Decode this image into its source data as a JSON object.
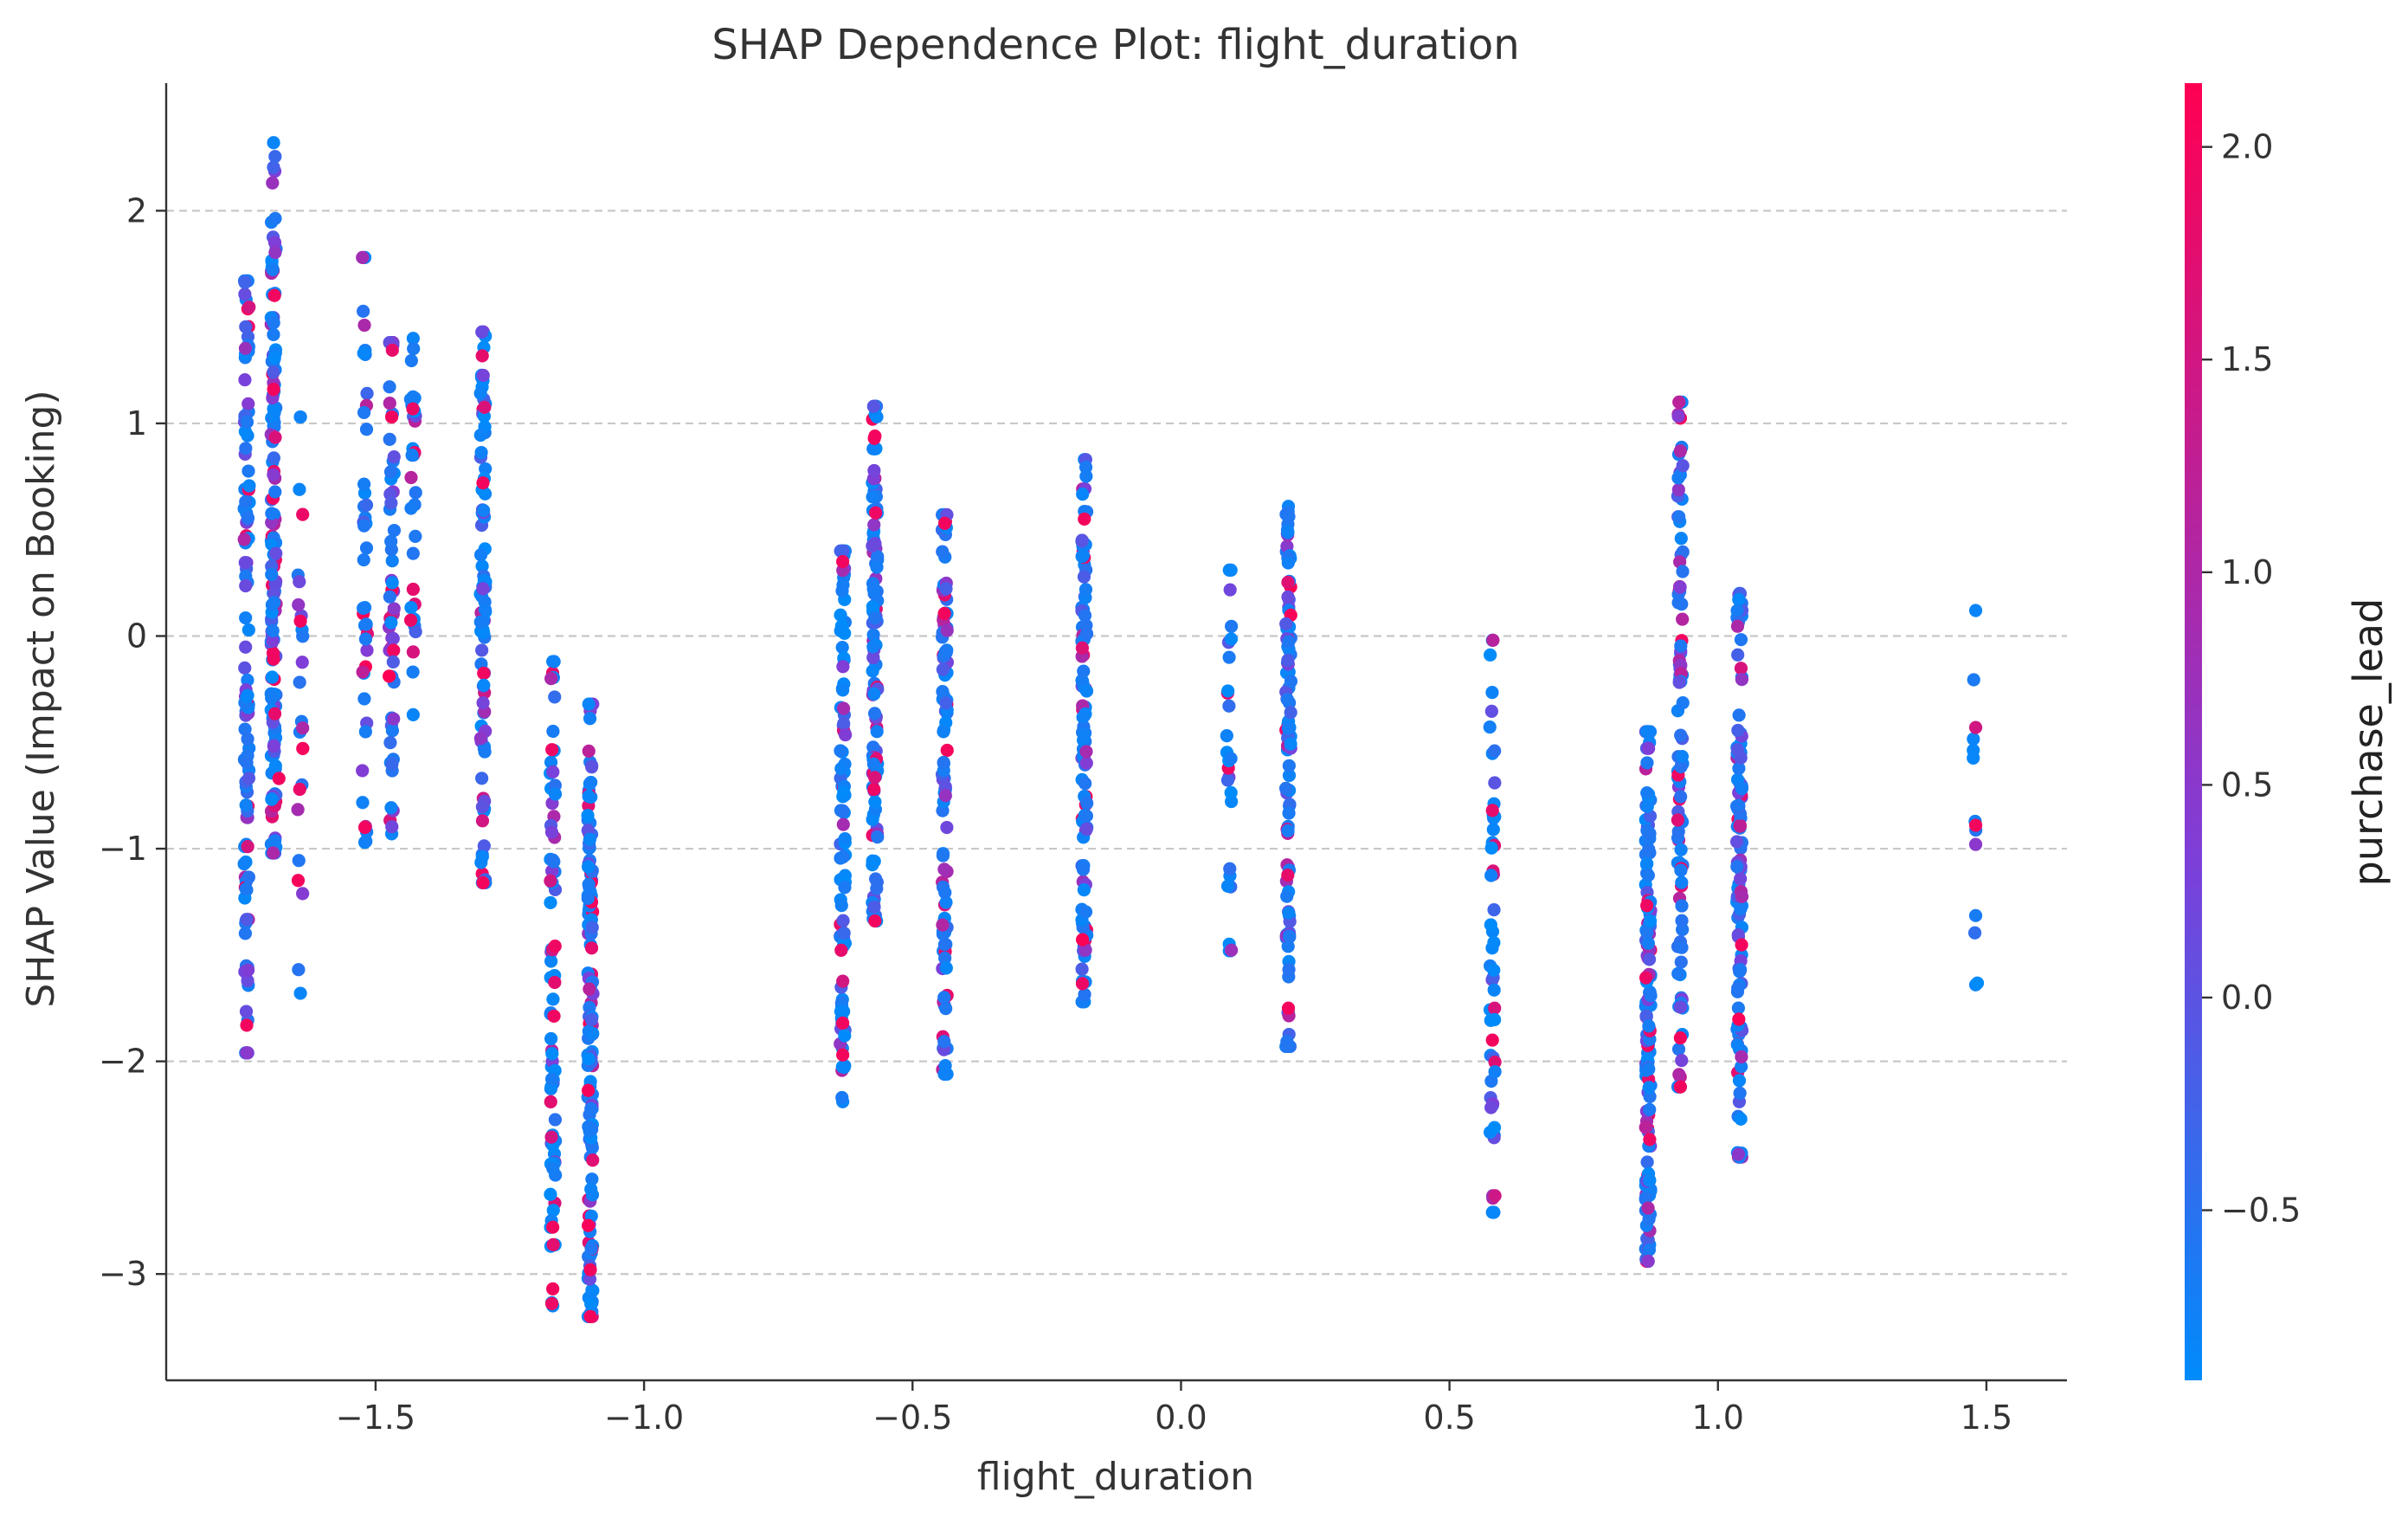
{
  "chart_data": {
    "type": "scatter",
    "title": "SHAP Dependence Plot: flight_duration",
    "xlabel": "flight_duration",
    "ylabel": "SHAP Value (Impact on Booking)",
    "xlim": [
      -1.89,
      1.65
    ],
    "ylim": [
      -3.5,
      2.6
    ],
    "xticks": [
      -1.5,
      -1.0,
      -0.5,
      0.0,
      0.5,
      1.0,
      1.5
    ],
    "xtick_labels": [
      "−1.5",
      "−1.0",
      "−0.5",
      "0.0",
      "0.5",
      "1.0",
      "1.5"
    ],
    "yticks": [
      2,
      1,
      0,
      -1,
      -2,
      -3
    ],
    "ytick_labels": [
      "2",
      "1",
      "0",
      "−1",
      "−2",
      "−3"
    ],
    "grid": "horizontal dashed",
    "colorbar": {
      "label": "purchase_lead",
      "range": [
        -0.9,
        2.15
      ],
      "ticks": [
        2.0,
        1.5,
        1.0,
        0.5,
        0.0,
        -0.5
      ],
      "tick_labels": [
        "2.0",
        "1.5",
        "1.0",
        "0.5",
        "0.0",
        "−0.5"
      ],
      "colors": [
        "#008bfb",
        "#7d3fd9",
        "#ff0052"
      ]
    },
    "groups": [
      {
        "x": -1.74,
        "ymin": -1.96,
        "ymax": 1.67,
        "ymean": -0.2,
        "n": 110,
        "cmean": 0.1,
        "extras": [
          [
            -1.74,
            -1.83,
            2.0
          ]
        ]
      },
      {
        "x": -1.69,
        "ymin": -1.02,
        "ymax": 2.32,
        "ymean": 0.5,
        "n": 150,
        "cmean": -0.1,
        "extras": [
          [
            -1.69,
            1.16,
            2.0
          ],
          [
            -1.68,
            -0.67,
            2.0
          ]
        ]
      },
      {
        "x": -1.64,
        "ymin": -1.68,
        "ymax": 1.03,
        "ymean": -0.1,
        "n": 22,
        "cmean": 0.2,
        "extras": [
          [
            -1.64,
            0.07,
            2.0
          ]
        ]
      },
      {
        "x": -1.52,
        "ymin": -0.97,
        "ymax": 1.78,
        "ymean": 0.3,
        "n": 40,
        "cmean": 0.1,
        "extras": [
          [
            -1.52,
            -0.9,
            2.0
          ]
        ]
      },
      {
        "x": -1.47,
        "ymin": -0.93,
        "ymax": 1.38,
        "ymean": 0.3,
        "n": 55,
        "cmean": 0.1,
        "extras": [
          [
            -1.47,
            1.03,
            2.0
          ]
        ]
      },
      {
        "x": -1.43,
        "ymin": -0.37,
        "ymax": 1.4,
        "ymean": 0.4,
        "n": 30,
        "cmean": 0.0,
        "extras": [
          [
            -1.43,
            0.22,
            1.8
          ]
        ]
      },
      {
        "x": -1.3,
        "ymin": -1.16,
        "ymax": 1.43,
        "ymean": 0.2,
        "n": 90,
        "cmean": -0.3,
        "extras": [
          [
            -1.3,
            -1.16,
            2.0
          ],
          [
            -1.3,
            0.72,
            2.0
          ]
        ]
      },
      {
        "x": -1.17,
        "ymin": -3.15,
        "ymax": -0.12,
        "ymean": -1.6,
        "n": 75,
        "cmean": -0.3,
        "extras": [
          [
            -1.17,
            -3.07,
            2.0
          ],
          [
            -1.17,
            -2.78,
            2.0
          ]
        ]
      },
      {
        "x": -1.1,
        "ymin": -3.2,
        "ymax": -0.32,
        "ymean": -1.8,
        "n": 150,
        "cmean": 0.0,
        "extras": [
          [
            -1.1,
            -3.2,
            2.0
          ],
          [
            -1.1,
            -2.98,
            2.0
          ]
        ]
      },
      {
        "x": -0.63,
        "ymin": -2.19,
        "ymax": 0.4,
        "ymean": -0.9,
        "n": 90,
        "cmean": -0.2,
        "extras": [
          [
            -0.63,
            -1.97,
            2.0
          ],
          [
            -0.63,
            -1.82,
            2.0
          ],
          [
            -0.63,
            0.35,
            2.0
          ]
        ]
      },
      {
        "x": -0.57,
        "ymin": -1.34,
        "ymax": 1.08,
        "ymean": -0.1,
        "n": 120,
        "cmean": 0.0,
        "extras": [
          [
            -0.57,
            0.94,
            2.0
          ],
          [
            -0.57,
            -1.34,
            2.0
          ]
        ]
      },
      {
        "x": -0.44,
        "ymin": -2.06,
        "ymax": 0.57,
        "ymean": -0.6,
        "n": 110,
        "cmean": 0.1,
        "extras": [
          [
            -0.44,
            0.53,
            2.0
          ]
        ]
      },
      {
        "x": -0.18,
        "ymin": -1.72,
        "ymax": 0.83,
        "ymean": -0.3,
        "n": 110,
        "cmean": 0.1,
        "extras": [
          [
            -0.18,
            0.55,
            2.0
          ]
        ]
      },
      {
        "x": 0.09,
        "ymin": -1.48,
        "ymax": 0.31,
        "ymean": -0.5,
        "n": 25,
        "cmean": -0.2,
        "extras": []
      },
      {
        "x": 0.2,
        "ymin": -1.93,
        "ymax": 0.61,
        "ymean": -0.7,
        "n": 100,
        "cmean": 0.1,
        "extras": [
          [
            0.2,
            -1.75,
            2.0
          ]
        ]
      },
      {
        "x": 0.58,
        "ymin": -2.71,
        "ymax": -0.02,
        "ymean": -1.6,
        "n": 50,
        "cmean": -0.2,
        "extras": [
          [
            0.58,
            -1.9,
            2.0
          ],
          [
            0.58,
            -0.82,
            1.8
          ]
        ]
      },
      {
        "x": 0.87,
        "ymin": -2.94,
        "ymax": -0.45,
        "ymean": -1.7,
        "n": 140,
        "cmean": 0.0,
        "extras": [
          [
            0.87,
            -2.94,
            0.5
          ],
          [
            0.87,
            -2.69,
            1.0
          ]
        ]
      },
      {
        "x": 0.93,
        "ymin": -2.12,
        "ymax": 1.1,
        "ymean": -0.4,
        "n": 100,
        "cmean": 0.3,
        "extras": [
          [
            0.93,
            -2.12,
            2.0
          ],
          [
            0.93,
            -1.89,
            2.0
          ],
          [
            0.93,
            0.87,
            1.0
          ]
        ]
      },
      {
        "x": 1.04,
        "ymin": -2.45,
        "ymax": 0.2,
        "ymean": -1.0,
        "n": 110,
        "cmean": 0.1,
        "extras": []
      },
      {
        "x": 1.48,
        "ymin": -1.64,
        "ymax": 0.12,
        "ymean": -0.7,
        "n": 9,
        "cmean": 0.0,
        "extras": [
          [
            1.48,
            -0.43,
            1.5
          ],
          [
            1.48,
            -0.89,
            2.0
          ],
          [
            1.48,
            -0.98,
            0.5
          ]
        ]
      }
    ]
  }
}
